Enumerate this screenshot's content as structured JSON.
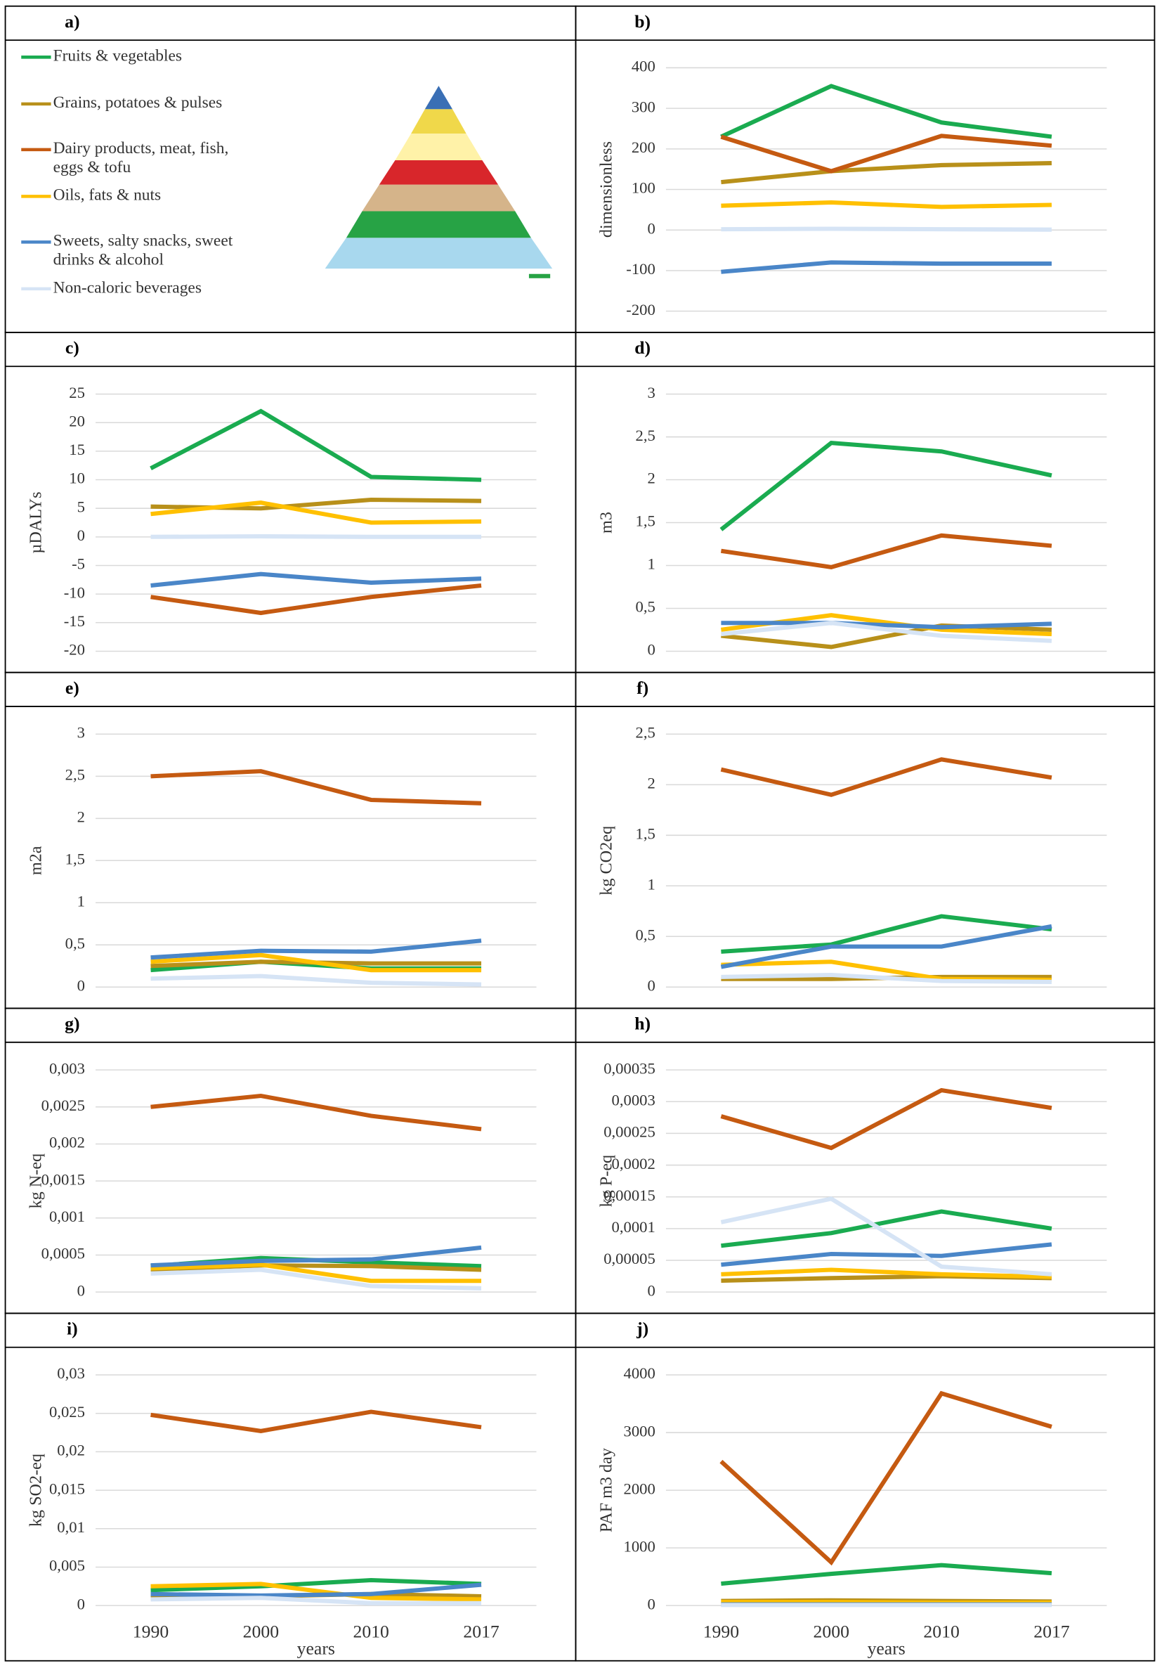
{
  "legend": {
    "panel": "a)",
    "series": [
      {
        "name": "Fruits & vegetables",
        "color": "#1aab50"
      },
      {
        "name": "Grains, potatoes & pulses",
        "color": "#b8901a"
      },
      {
        "name": "Dairy products, meat, fish, eggs & tofu",
        "color": "#c55a11"
      },
      {
        "name": "Oils, fats & nuts",
        "color": "#ffc000"
      },
      {
        "name": "Sweets, salty snacks, sweet drinks & alcohol",
        "color": "#4a86c8"
      },
      {
        "name": "Non-caloric beverages",
        "color": "#d6e4f5"
      }
    ]
  },
  "chart_data": [
    {
      "type": "line",
      "panel": "b)",
      "ylabel": "dimensionless",
      "ylim": [
        -200,
        400
      ],
      "yticks": [
        -200,
        -100,
        0,
        100,
        200,
        300,
        400
      ],
      "grid": true,
      "series": [
        {
          "values": [
            230,
            355,
            265,
            230
          ]
        },
        {
          "values": [
            118,
            145,
            160,
            165
          ]
        },
        {
          "values": [
            230,
            145,
            232,
            208
          ]
        },
        {
          "values": [
            60,
            68,
            57,
            62
          ]
        },
        {
          "values": [
            -103,
            -80,
            -83,
            -83
          ]
        },
        {
          "values": [
            2,
            3,
            2,
            1
          ]
        }
      ]
    },
    {
      "type": "line",
      "panel": "c)",
      "ylabel": "µDALYs",
      "ylim": [
        -20,
        25
      ],
      "yticks": [
        -20,
        -15,
        -10,
        -5,
        0,
        5,
        10,
        15,
        20,
        25
      ],
      "grid": true,
      "series": [
        {
          "values": [
            12,
            22,
            10.5,
            10
          ]
        },
        {
          "values": [
            5.3,
            5,
            6.5,
            6.3
          ]
        },
        {
          "values": [
            -10.5,
            -13.3,
            -10.5,
            -8.5
          ]
        },
        {
          "values": [
            4,
            6,
            2.5,
            2.7
          ]
        },
        {
          "values": [
            -8.5,
            -6.5,
            -8,
            -7.3
          ]
        },
        {
          "values": [
            0,
            0.1,
            0,
            0
          ]
        }
      ]
    },
    {
      "type": "line",
      "panel": "d)",
      "ylabel": "m3",
      "ylim": [
        0,
        3
      ],
      "yticks": [
        0,
        {
          "value": 0.5,
          "label": "0,5"
        },
        1,
        {
          "value": 1.5,
          "label": "1,5"
        },
        2,
        {
          "value": 2.5,
          "label": "2,5"
        },
        3
      ],
      "grid": true,
      "series": [
        {
          "values": [
            1.42,
            2.43,
            2.33,
            2.05
          ]
        },
        {
          "values": [
            0.18,
            0.05,
            0.3,
            0.25
          ]
        },
        {
          "values": [
            1.17,
            0.98,
            1.35,
            1.23
          ]
        },
        {
          "values": [
            0.25,
            0.42,
            0.25,
            0.2
          ]
        },
        {
          "values": [
            0.33,
            0.33,
            0.28,
            0.32
          ]
        },
        {
          "values": [
            0.2,
            0.33,
            0.18,
            0.12
          ]
        }
      ]
    },
    {
      "type": "line",
      "panel": "e)",
      "ylabel": "m2a",
      "ylim": [
        0,
        3
      ],
      "yticks": [
        0,
        {
          "value": 0.5,
          "label": "0,5"
        },
        1,
        {
          "value": 1.5,
          "label": "1,5"
        },
        2,
        {
          "value": 2.5,
          "label": "2,5"
        },
        3
      ],
      "grid": true,
      "series": [
        {
          "values": [
            0.2,
            0.3,
            0.22,
            0.22
          ]
        },
        {
          "values": [
            0.25,
            0.3,
            0.28,
            0.28
          ]
        },
        {
          "values": [
            2.5,
            2.56,
            2.22,
            2.18
          ]
        },
        {
          "values": [
            0.3,
            0.38,
            0.2,
            0.2
          ]
        },
        {
          "values": [
            0.35,
            0.43,
            0.42,
            0.55
          ]
        },
        {
          "values": [
            0.1,
            0.13,
            0.05,
            0.03
          ]
        }
      ]
    },
    {
      "type": "line",
      "panel": "f)",
      "ylabel": "kg CO2eq",
      "ylim": [
        0,
        2.5
      ],
      "yticks": [
        0,
        {
          "value": 0.5,
          "label": "0,5"
        },
        1,
        {
          "value": 1.5,
          "label": "1,5"
        },
        2,
        {
          "value": 2.5,
          "label": "2,5"
        }
      ],
      "grid": true,
      "series": [
        {
          "values": [
            0.35,
            0.42,
            0.7,
            0.57
          ]
        },
        {
          "values": [
            0.08,
            0.08,
            0.1,
            0.1
          ]
        },
        {
          "values": [
            2.15,
            1.9,
            2.25,
            2.07
          ]
        },
        {
          "values": [
            0.22,
            0.25,
            0.08,
            0.07
          ]
        },
        {
          "values": [
            0.2,
            0.4,
            0.4,
            0.6
          ]
        },
        {
          "values": [
            0.1,
            0.12,
            0.06,
            0.05
          ]
        }
      ]
    },
    {
      "type": "line",
      "panel": "g)",
      "ylabel": "kg N-eq",
      "ylim": [
        0,
        0.003
      ],
      "yticks": [
        0,
        {
          "value": 0.0005,
          "label": "0,0005"
        },
        {
          "value": 0.001,
          "label": "0,001"
        },
        {
          "value": 0.0015,
          "label": "0,0015"
        },
        {
          "value": 0.002,
          "label": "0,002"
        },
        {
          "value": 0.0025,
          "label": "0,0025"
        },
        {
          "value": 0.003,
          "label": "0,003"
        }
      ],
      "grid": true,
      "series": [
        {
          "values": [
            0.00035,
            0.00046,
            0.0004,
            0.00035
          ]
        },
        {
          "values": [
            0.0003,
            0.00036,
            0.00035,
            0.0003
          ]
        },
        {
          "values": [
            0.0025,
            0.00265,
            0.00238,
            0.0022
          ]
        },
        {
          "values": [
            0.00032,
            0.00037,
            0.00015,
            0.00015
          ]
        },
        {
          "values": [
            0.00036,
            0.00042,
            0.00044,
            0.0006
          ]
        },
        {
          "values": [
            0.00025,
            0.0003,
            8e-05,
            5e-05
          ]
        }
      ]
    },
    {
      "type": "line",
      "panel": "h)",
      "ylabel": "kg P-eq",
      "ylim": [
        0,
        0.00035
      ],
      "yticks": [
        0,
        {
          "value": 5e-05,
          "label": "0,00005"
        },
        {
          "value": 0.0001,
          "label": "0,0001"
        },
        {
          "value": 0.00015,
          "label": "0,00015"
        },
        {
          "value": 0.0002,
          "label": "0,0002"
        },
        {
          "value": 0.00025,
          "label": "0,00025"
        },
        {
          "value": 0.0003,
          "label": "0,0003"
        },
        {
          "value": 0.00035,
          "label": "0,00035"
        }
      ],
      "grid": true,
      "series": [
        {
          "values": [
            7.3e-05,
            9.3e-05,
            0.000127,
            0.0001
          ]
        },
        {
          "values": [
            1.8e-05,
            2.2e-05,
            2.5e-05,
            2.2e-05
          ]
        },
        {
          "values": [
            0.000277,
            0.000227,
            0.000318,
            0.00029
          ]
        },
        {
          "values": [
            2.8e-05,
            3.5e-05,
            2.8e-05,
            2.4e-05
          ]
        },
        {
          "values": [
            4.3e-05,
            6e-05,
            5.7e-05,
            7.5e-05
          ]
        },
        {
          "values": [
            0.00011,
            0.000147,
            4e-05,
            2.8e-05
          ]
        }
      ]
    },
    {
      "type": "line",
      "panel": "i)",
      "ylabel": "kg SO2-eq",
      "xlabel": "years",
      "categories": [
        "1990",
        "2000",
        "2010",
        "2017"
      ],
      "ylim": [
        0,
        0.03
      ],
      "yticks": [
        0,
        {
          "value": 0.005,
          "label": "0,005"
        },
        {
          "value": 0.01,
          "label": "0,01"
        },
        {
          "value": 0.015,
          "label": "0,015"
        },
        {
          "value": 0.02,
          "label": "0,02"
        },
        {
          "value": 0.025,
          "label": "0,025"
        },
        {
          "value": 0.03,
          "label": "0,03"
        }
      ],
      "grid": true,
      "series": [
        {
          "values": [
            0.002,
            0.0025,
            0.0033,
            0.0028
          ]
        },
        {
          "values": [
            0.001,
            0.0012,
            0.0015,
            0.0012
          ]
        },
        {
          "values": [
            0.0248,
            0.0227,
            0.0252,
            0.0232
          ]
        },
        {
          "values": [
            0.0025,
            0.0028,
            0.001,
            0.0008
          ]
        },
        {
          "values": [
            0.0015,
            0.0013,
            0.0015,
            0.0027
          ]
        },
        {
          "values": [
            0.0008,
            0.001,
            0.0003,
            0.0003
          ]
        }
      ]
    },
    {
      "type": "line",
      "panel": "j)",
      "ylabel": "PAF m3 day",
      "xlabel": "years",
      "categories": [
        "1990",
        "2000",
        "2010",
        "2017"
      ],
      "ylim": [
        0,
        4000
      ],
      "yticks": [
        0,
        1000,
        2000,
        3000,
        4000
      ],
      "grid": true,
      "series": [
        {
          "values": [
            380,
            550,
            700,
            560
          ]
        },
        {
          "values": [
            80,
            90,
            80,
            70
          ]
        },
        {
          "values": [
            2500,
            750,
            3680,
            3100
          ]
        },
        {
          "values": [
            60,
            60,
            50,
            50
          ]
        },
        {
          "values": [
            20,
            20,
            20,
            20
          ]
        },
        {
          "values": [
            10,
            10,
            10,
            10
          ]
        }
      ]
    }
  ]
}
